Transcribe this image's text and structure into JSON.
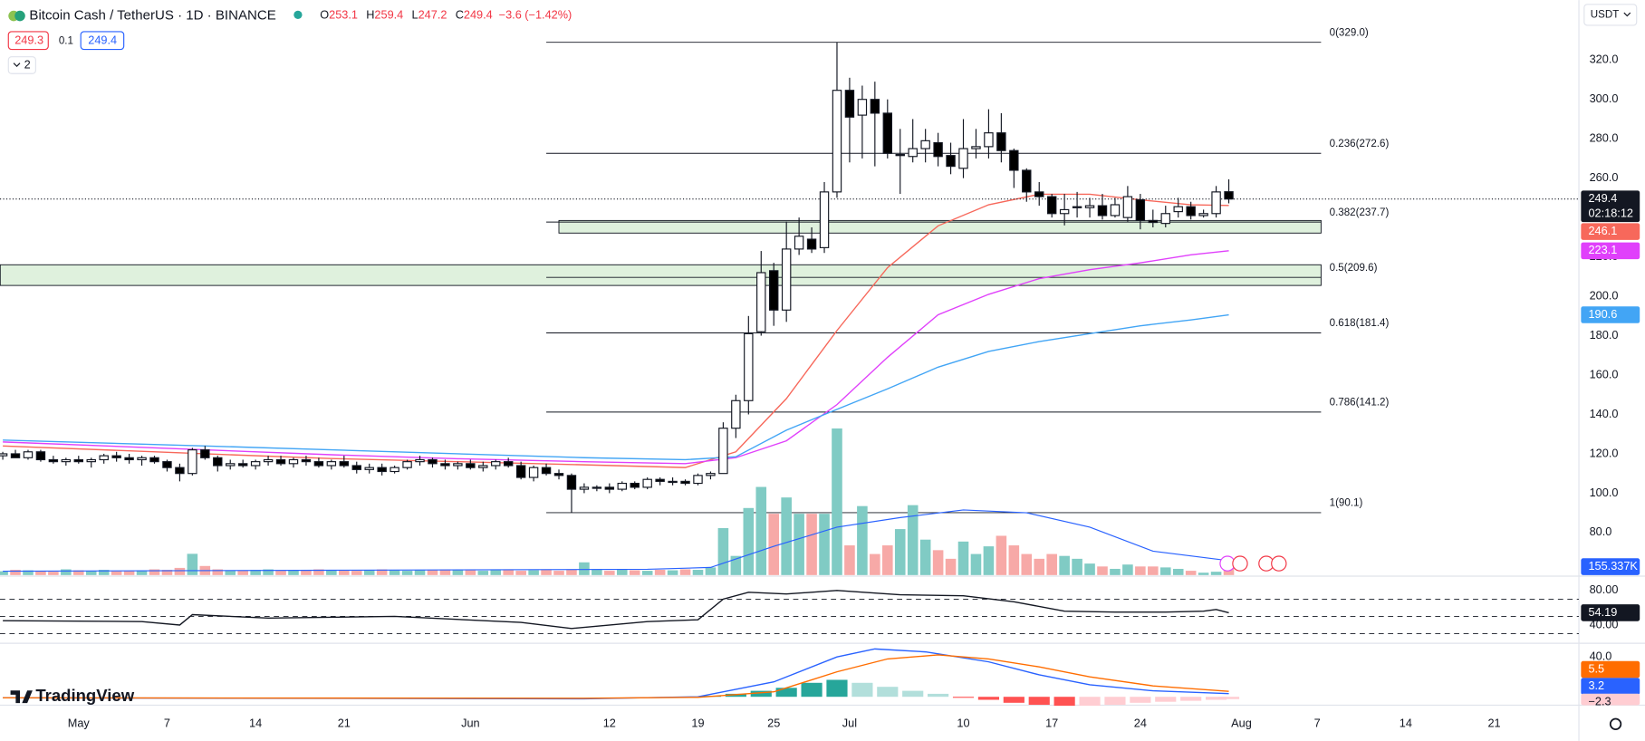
{
  "header": {
    "symbol": "Bitcoin Cash / TetherUS · 1D · BINANCE",
    "ohlc": [
      {
        "label": "O",
        "value": 253.1
      },
      {
        "label": "H",
        "value": 259.4
      },
      {
        "label": "L",
        "value": 247.2
      },
      {
        "label": "C",
        "value": 249.4
      }
    ],
    "change": "−3.6 (−1.42%)",
    "sell": 249.3,
    "spread": 0.1,
    "buy": 249.4,
    "indicators_collapsed": 2,
    "currency": "USDT",
    "logo": "TradingView"
  },
  "chart_data": {
    "type": "candlestick",
    "x": [
      -6,
      -5,
      -4,
      -3,
      -2,
      -1,
      0,
      1,
      2,
      3,
      4,
      5,
      6,
      7,
      8,
      9,
      10,
      11,
      12,
      13,
      14,
      15,
      16,
      17,
      18,
      19,
      20,
      21,
      22,
      23,
      24,
      25,
      26,
      27,
      28,
      29,
      30,
      31,
      32,
      33,
      34,
      35,
      36,
      37,
      38,
      39,
      40,
      41,
      42,
      43,
      44,
      45,
      46,
      47,
      48,
      49,
      50,
      51,
      52,
      53,
      54,
      55,
      56,
      57,
      58,
      59,
      60,
      61,
      62,
      63,
      64,
      65,
      66,
      67,
      68,
      69,
      70,
      71,
      72,
      73,
      74,
      75,
      76,
      77,
      78,
      79,
      80,
      81,
      82,
      83,
      84,
      85,
      86,
      87,
      88,
      89,
      90,
      91
    ],
    "candles": [
      [
        119,
        121,
        117,
        120
      ],
      [
        120,
        122,
        118,
        118
      ],
      [
        118,
        122,
        117,
        121
      ],
      [
        121,
        122,
        116,
        117
      ],
      [
        117,
        119,
        115,
        116
      ],
      [
        116,
        118,
        114,
        117
      ],
      [
        117,
        119,
        115,
        116
      ],
      [
        116,
        118,
        113,
        117
      ],
      [
        117,
        120,
        115,
        119
      ],
      [
        119,
        121,
        116,
        118
      ],
      [
        118,
        120,
        115,
        117
      ],
      [
        117,
        119,
        114,
        118
      ],
      [
        118,
        119,
        115,
        116
      ],
      [
        116,
        117,
        111,
        113
      ],
      [
        113,
        115,
        106,
        110
      ],
      [
        110,
        123,
        109,
        122
      ],
      [
        122,
        124,
        117,
        118
      ],
      [
        118,
        119,
        111,
        114
      ],
      [
        114,
        117,
        112,
        115
      ],
      [
        115,
        117,
        113,
        114
      ],
      [
        114,
        117,
        112,
        116
      ],
      [
        116,
        119,
        114,
        117
      ],
      [
        117,
        119,
        114,
        115
      ],
      [
        115,
        118,
        113,
        117
      ],
      [
        117,
        119,
        114,
        116
      ],
      [
        116,
        118,
        113,
        114
      ],
      [
        114,
        117,
        112,
        116
      ],
      [
        116,
        119,
        113,
        114
      ],
      [
        114,
        116,
        110,
        112
      ],
      [
        112,
        115,
        110,
        113
      ],
      [
        113,
        115,
        109,
        111
      ],
      [
        111,
        114,
        110,
        113
      ],
      [
        113,
        117,
        112,
        116
      ],
      [
        116,
        119,
        114,
        117
      ],
      [
        117,
        118,
        113,
        115
      ],
      [
        115,
        117,
        112,
        114
      ],
      [
        114,
        116,
        112,
        115
      ],
      [
        115,
        117,
        112,
        113
      ],
      [
        113,
        116,
        111,
        114
      ],
      [
        114,
        117,
        112,
        116
      ],
      [
        116,
        118,
        113,
        114
      ],
      [
        114,
        116,
        107,
        108
      ],
      [
        108,
        114,
        106,
        113
      ],
      [
        113,
        115,
        109,
        110
      ],
      [
        110,
        112,
        107,
        109
      ],
      [
        109,
        110,
        90.1,
        102
      ],
      [
        102,
        105,
        100,
        103
      ],
      [
        103,
        104,
        101,
        103
      ],
      [
        103,
        105,
        100,
        102
      ],
      [
        102,
        106,
        101,
        105
      ],
      [
        105,
        106,
        102,
        103
      ],
      [
        103,
        108,
        102,
        107
      ],
      [
        107,
        108,
        104,
        106
      ],
      [
        106,
        108,
        104,
        106
      ],
      [
        106,
        107,
        104,
        105
      ],
      [
        105,
        110,
        104,
        109
      ],
      [
        109,
        111,
        107,
        110
      ],
      [
        110,
        136,
        110,
        133
      ],
      [
        133,
        150,
        128,
        147
      ],
      [
        147,
        190,
        140,
        181
      ],
      [
        182,
        223,
        180,
        212
      ],
      [
        213,
        217,
        185,
        193
      ],
      [
        193,
        238,
        187,
        224
      ],
      [
        224,
        240,
        221,
        230.5
      ],
      [
        229,
        235,
        222,
        224
      ],
      [
        224.7,
        258,
        222,
        253
      ],
      [
        253,
        329,
        250,
        304.6
      ],
      [
        304.6,
        311,
        268,
        291
      ],
      [
        292,
        307,
        270,
        300
      ],
      [
        300,
        309,
        266,
        293
      ],
      [
        293,
        300,
        270,
        272.6
      ],
      [
        272,
        285,
        252,
        272
      ],
      [
        271,
        290,
        268,
        275
      ],
      [
        275,
        285,
        268,
        279
      ],
      [
        278,
        283,
        266,
        271
      ],
      [
        271.5,
        278,
        262,
        266
      ],
      [
        265,
        290,
        260,
        275
      ],
      [
        275,
        285,
        270,
        276
      ],
      [
        276,
        295,
        270,
        283
      ],
      [
        283,
        293,
        268,
        274
      ],
      [
        274,
        275,
        255,
        264
      ],
      [
        264,
        265,
        248,
        253
      ],
      [
        253,
        258,
        246,
        250.6
      ],
      [
        250.6,
        252,
        240,
        242
      ],
      [
        242,
        252,
        236,
        244
      ],
      [
        245,
        253,
        240,
        245.5
      ],
      [
        245,
        250,
        240,
        246
      ],
      [
        246,
        252,
        239,
        241
      ],
      [
        241,
        250,
        240,
        246.5
      ],
      [
        240,
        256,
        238,
        250.6
      ],
      [
        249,
        252,
        234,
        238.5
      ],
      [
        238.5,
        244,
        235,
        237.5
      ],
      [
        237,
        246,
        235,
        242
      ],
      [
        243,
        250,
        240,
        245.5
      ],
      [
        245.5,
        248,
        239,
        241
      ],
      [
        241,
        244,
        240,
        242
      ],
      [
        242,
        256,
        240,
        253
      ],
      [
        253.1,
        259.4,
        247.2,
        249.4
      ]
    ],
    "xlim": [
      -6.22,
      118.7
    ],
    "xticks": [
      {
        "value": 0,
        "label": "May"
      },
      7,
      14,
      21,
      {
        "value": 31,
        "label": "Jun"
      },
      {
        "value": 42,
        "label": "12"
      },
      {
        "value": 49,
        "label": "19"
      },
      {
        "value": 55,
        "label": "25"
      },
      {
        "value": 61,
        "label": "Jul"
      },
      {
        "value": 70,
        "label": "10"
      },
      {
        "value": 77,
        "label": "17"
      },
      {
        "value": 84,
        "label": "24"
      },
      {
        "value": 92,
        "label": "Aug"
      },
      {
        "value": 98,
        "label": "7"
      },
      {
        "value": 105,
        "label": "14"
      },
      {
        "value": 112,
        "label": "21"
      }
    ],
    "ylim": [
      58.4,
      350.4
    ],
    "yticks": [
      {
        "value": 80,
        "label": "80.0"
      },
      {
        "value": 100,
        "label": "100.0"
      },
      {
        "value": 120,
        "label": "120.0"
      },
      {
        "value": 140,
        "label": "140.0"
      },
      {
        "value": 160,
        "label": "160.0"
      },
      {
        "value": 180,
        "label": "180.0"
      },
      {
        "value": 200,
        "label": "200.0"
      },
      {
        "value": 220,
        "label": "220.0"
      },
      {
        "value": 240,
        "label": "240.0"
      },
      {
        "value": 260,
        "label": "260.0"
      },
      {
        "value": 280,
        "label": "280.0"
      },
      {
        "value": 300,
        "label": "300.0"
      },
      {
        "value": 320,
        "label": "320.0"
      }
    ],
    "current_price": 249.4,
    "countdown": "02:18:12",
    "fib_x": [
      37,
      98.3
    ],
    "fib_levels": [
      {
        "value": 329.0,
        "label": "0(329.0)"
      },
      {
        "value": 272.6,
        "label": "0.236(272.6)"
      },
      {
        "value": 237.7,
        "label": "0.382(237.7)"
      },
      {
        "value": 209.6,
        "label": "0.5(209.6)"
      },
      {
        "value": 181.4,
        "label": "0.618(181.4)"
      },
      {
        "value": 141.2,
        "label": "0.786(141.2)"
      },
      {
        "value": 90.1,
        "label": "1(90.1)"
      }
    ],
    "zones": [
      {
        "x": [
          38,
          98.3
        ],
        "low": 232.1,
        "high": 238.5
      },
      {
        "x": [
          -6.2,
          98.3
        ],
        "low": 205.5,
        "high": 216
      }
    ],
    "moving_averages": [
      {
        "color": "#f7685b",
        "x": [
          -6,
          10,
          20,
          30,
          40,
          48,
          52,
          56,
          60,
          64,
          68,
          72,
          76,
          80,
          84,
          88,
          91
        ],
        "values": [
          124,
          120,
          117.6,
          116,
          114.4,
          113,
          121,
          148,
          182.6,
          214.5,
          235.8,
          246.5,
          251.8,
          251.8,
          249,
          246.5,
          246.1
        ]
      },
      {
        "color": "#e040fb",
        "x": [
          -6,
          10,
          20,
          30,
          40,
          48,
          52,
          56,
          60,
          64,
          68,
          72,
          76,
          80,
          84,
          88,
          91
        ],
        "values": [
          126,
          122,
          119.5,
          117.5,
          116,
          115,
          118,
          126.6,
          145,
          169,
          190.6,
          201,
          209,
          213.5,
          217,
          221,
          223.1
        ]
      },
      {
        "color": "#42a5f5",
        "x": [
          -6,
          10,
          20,
          30,
          40,
          48,
          52,
          56,
          60,
          64,
          68,
          72,
          76,
          80,
          84,
          88,
          91
        ],
        "values": [
          127,
          124,
          122,
          120,
          118,
          117,
          118.5,
          132,
          142.6,
          153,
          164,
          172,
          177,
          181,
          185,
          188,
          190.6
        ]
      }
    ],
    "volume": {
      "ylim": [
        0,
        6000
      ],
      "label": "155.337K",
      "values": [
        40,
        55,
        50,
        45,
        35,
        60,
        50,
        45,
        55,
        40,
        45,
        50,
        60,
        55,
        75,
        222,
        95,
        60,
        45,
        50,
        55,
        60,
        45,
        50,
        55,
        60,
        50,
        55,
        45,
        55,
        60,
        50,
        45,
        55,
        50,
        60,
        55,
        50,
        45,
        55,
        60,
        45,
        50,
        55,
        45,
        60,
        133,
        60,
        45,
        55,
        50,
        45,
        55,
        50,
        60,
        55,
        80,
        490,
        200,
        700,
        920,
        640,
        810,
        640,
        640,
        640,
        1530,
        310,
        720,
        220,
        310,
        480,
        730,
        370,
        260,
        170,
        350,
        220,
        300,
        410,
        310,
        220,
        170,
        220,
        200,
        170,
        120,
        90,
        65,
        110,
        90,
        90,
        80,
        65,
        45,
        25,
        35,
        155.337
      ],
      "ma": {
        "color": "#2962ff",
        "x": [
          -6,
          20,
          45,
          50,
          55,
          60,
          65,
          70,
          75,
          80,
          85,
          91
        ],
        "values": [
          40,
          50,
          60,
          80,
          300,
          500,
          600,
          680,
          650,
          500,
          250,
          150
        ]
      }
    },
    "rsi": {
      "color": "#131722",
      "ylim": [
        20,
        95.5
      ],
      "yticks": [
        {
          "value": 80,
          "label": "80.00"
        },
        {
          "value": 40,
          "label": "40.00"
        }
      ],
      "bands": [
        70,
        50,
        30
      ],
      "x": [
        -6,
        5,
        8,
        9,
        15,
        25,
        35,
        39,
        45,
        49,
        51,
        53,
        56,
        60,
        65,
        70,
        74,
        78,
        82,
        86,
        89,
        90,
        91
      ],
      "values": [
        45,
        44,
        40,
        52,
        48,
        50,
        43,
        36,
        44,
        46,
        70,
        78,
        76,
        80,
        75,
        74,
        67,
        56,
        55,
        55,
        56,
        58,
        54.19
      ]
    },
    "macd": {
      "ylim": [
        -8.4,
        52.6
      ],
      "yticks": [
        {
          "value": 40,
          "label": "40.0"
        }
      ],
      "macd": {
        "color": "#2962ff",
        "x": [
          -6,
          40,
          49,
          55,
          60,
          63,
          67,
          72,
          76,
          80,
          85,
          91
        ],
        "values": [
          -1,
          -2,
          0,
          15,
          40,
          48,
          45,
          35,
          22,
          12,
          6,
          3.2
        ]
      },
      "signal": {
        "color": "#ff6d00",
        "x": [
          -6,
          40,
          49,
          55,
          60,
          64,
          68,
          72,
          76,
          80,
          85,
          91
        ],
        "values": [
          -1,
          -1.5,
          -0.5,
          5,
          25,
          38,
          42,
          38,
          30,
          20,
          11,
          5.5
        ]
      },
      "histogram": {
        "x": [
          50,
          52,
          54,
          56,
          58,
          60,
          62,
          64,
          66,
          68,
          70,
          72,
          74,
          76,
          78,
          80,
          82,
          84,
          86,
          88,
          90,
          91
        ],
        "values": [
          1,
          3,
          6,
          9,
          14,
          17,
          14,
          10,
          6,
          3,
          -1,
          -3,
          -6,
          -8,
          -9,
          -9,
          -8,
          -6,
          -5,
          -4,
          -3,
          -2.3
        ],
        "value_labels": [
          null,
          null,
          null,
          null,
          null,
          null,
          null,
          null,
          null,
          null,
          null,
          null,
          null,
          null,
          null,
          null,
          null,
          null,
          null,
          null,
          null,
          "−2.3"
        ]
      }
    }
  }
}
